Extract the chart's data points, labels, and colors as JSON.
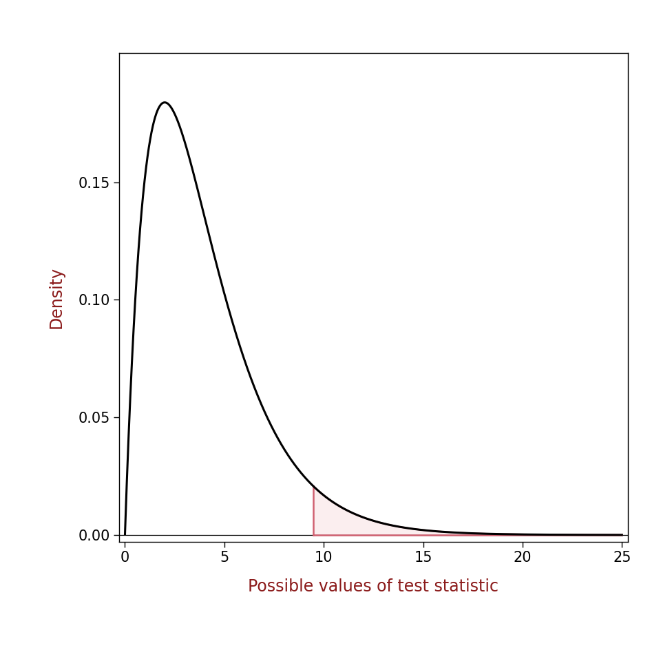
{
  "df": 4,
  "alpha": 0.05,
  "x_min": 0.001,
  "x_max": 25,
  "x_lim": [
    -0.3,
    25.3
  ],
  "y_lim": [
    -0.003,
    0.205
  ],
  "xlabel": "Possible values of test statistic",
  "ylabel": "Density",
  "curve_color": "#000000",
  "fill_color": "#E8909A",
  "fill_edge_color": "#D06070",
  "line_color": "#000000",
  "background_color": "#ffffff",
  "y_ticks": [
    0.0,
    0.05,
    0.1,
    0.15
  ],
  "x_ticks": [
    0,
    5,
    10,
    15,
    20,
    25
  ],
  "xlabel_color": "#8B1A1A",
  "ylabel_color": "#8B1A1A",
  "curve_linewidth": 2.2,
  "fill_linewidth": 1.8,
  "tick_fontsize": 15,
  "label_fontsize": 17
}
